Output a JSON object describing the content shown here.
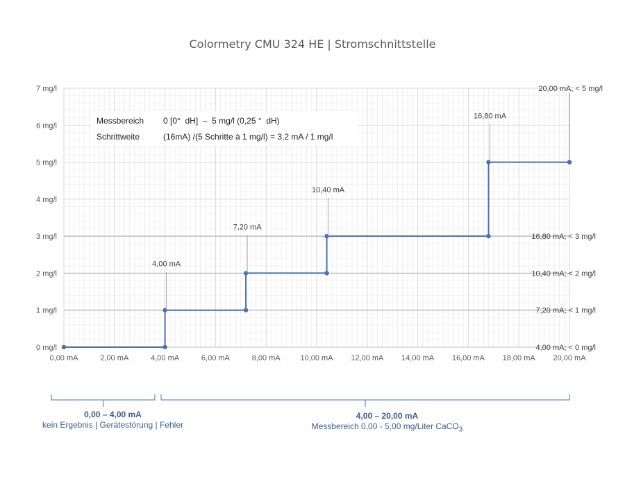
{
  "chart_data": {
    "type": "line",
    "title": "Colormetry CMU 324 HE  |  Stromschnittstelle",
    "xlim": [
      0,
      20
    ],
    "ylim": [
      0,
      7
    ],
    "x_ticks": [
      "0,00 mA",
      "2,00 mA",
      "4,00 mA",
      "6,00 mA",
      "8,00 mA",
      "10,00 mA",
      "12,00 mA",
      "14,00 mA",
      "16,00 mA",
      "18,00 mA",
      "20,00 mA"
    ],
    "y_ticks": [
      "0 mg/l",
      "1 mg/l",
      "2 mg/l",
      "3 mg/l",
      "4 mg/l",
      "5 mg/l",
      "6 mg/l",
      "7 mg/l"
    ],
    "grid": true,
    "series": [
      {
        "color": "#4a6fad",
        "step": "post",
        "points": [
          {
            "x": 0,
            "y": 0
          },
          {
            "x": 4,
            "y": 0
          },
          {
            "x": 4,
            "y": 1
          },
          {
            "x": 7.2,
            "y": 1
          },
          {
            "x": 7.2,
            "y": 2
          },
          {
            "x": 10.4,
            "y": 2
          },
          {
            "x": 10.4,
            "y": 3
          },
          {
            "x": 16.8,
            "y": 3
          },
          {
            "x": 16.8,
            "y": 5
          },
          {
            "x": 20,
            "y": 5
          }
        ]
      }
    ],
    "point_annotations": [
      {
        "x": 4,
        "y": 1,
        "text": "4,00 mA"
      },
      {
        "x": 7.2,
        "y": 2,
        "text": "7,20 mA"
      },
      {
        "x": 10.4,
        "y": 3,
        "text": "10,40 mA"
      },
      {
        "x": 16.8,
        "y": 5,
        "text": "16,80 mA"
      }
    ],
    "right_annotations": [
      {
        "y": 7,
        "text": "20,00 mA; < 5 mg/l"
      },
      {
        "y": 3,
        "text": "16,80 mA; < 3 mg/l"
      },
      {
        "y": 2,
        "text": "10,40 mA; < 2 mg/l"
      },
      {
        "y": 1,
        "text": "7,20 mA; < 1 mg/l"
      },
      {
        "y": 0,
        "text": "4,00 mA; < 0 mg/l"
      }
    ]
  },
  "info_box": {
    "row1_label": "Messbereich",
    "row1_value": "0 [0°  dH]  –  5 mg/l (0,25 °  dH)",
    "row2_label": "Schrittweite",
    "row2_value": "(16mA) /(5 Schritte à 1 mg/l) = 3,2 mA / 1 mg/l"
  },
  "range_left": {
    "range": "0,00 – 4,00 mA",
    "desc": "kein Ergebnis | Gerätestörung | Fehler"
  },
  "range_right": {
    "range": "4,00 – 20,00 mA",
    "desc": "Messbereich   0,00  -  5,00  mg/Liter CaCO",
    "subscript": "3"
  },
  "colors": {
    "line": "#4a6fad",
    "grid": "#d9d9d9",
    "brace": "#4a6fad"
  }
}
